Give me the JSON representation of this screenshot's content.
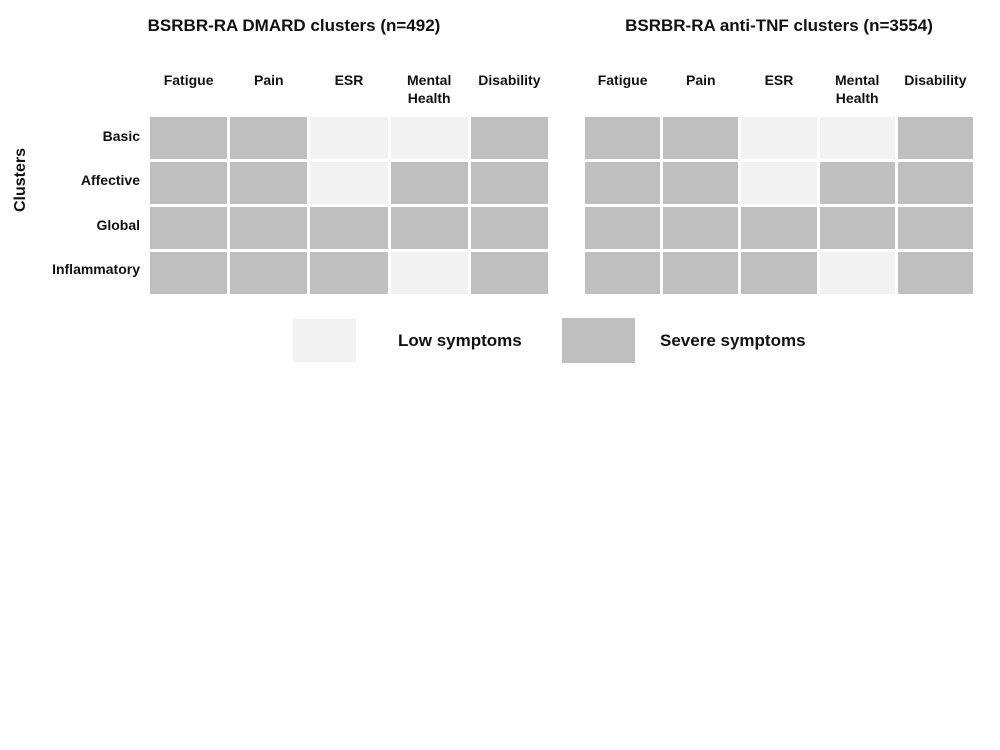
{
  "figure": {
    "y_axis_label": "Clusters",
    "legend": [
      {
        "key": "low",
        "label": "Low symptoms",
        "color": "#F2F2F2"
      },
      {
        "key": "severe",
        "label": "Severe symptoms",
        "color": "#BFBFBF"
      }
    ]
  },
  "chart_data": {
    "type": "heatmap",
    "categories_x": [
      "Fatigue",
      "Pain",
      "ESR",
      "Mental Health",
      "Disability"
    ],
    "categories_y": [
      "Basic",
      "Affective",
      "Global",
      "Inflammatory"
    ],
    "y_axis_label": "Clusters",
    "legend_position": "bottom",
    "value_labels": {
      "low": "Low symptoms",
      "severe": "Severe symptoms"
    },
    "colors": {
      "low": "#F2F2F2",
      "severe": "#BFBFBF",
      "background": "#FFFFFF",
      "text": "#111111"
    },
    "panels": [
      {
        "title": "BSRBR-RA DMARD clusters (n=492)",
        "n": 492,
        "values": [
          [
            "severe",
            "severe",
            "low",
            "low",
            "severe"
          ],
          [
            "severe",
            "severe",
            "low",
            "severe",
            "severe"
          ],
          [
            "severe",
            "severe",
            "severe",
            "severe",
            "severe"
          ],
          [
            "severe",
            "severe",
            "severe",
            "low",
            "severe"
          ]
        ]
      },
      {
        "title": "BSRBR-RA anti-TNF clusters (n=3554)",
        "n": 3554,
        "values": [
          [
            "severe",
            "severe",
            "low",
            "low",
            "severe"
          ],
          [
            "severe",
            "severe",
            "low",
            "severe",
            "severe"
          ],
          [
            "severe",
            "severe",
            "severe",
            "severe",
            "severe"
          ],
          [
            "severe",
            "severe",
            "severe",
            "low",
            "severe"
          ]
        ]
      }
    ]
  }
}
